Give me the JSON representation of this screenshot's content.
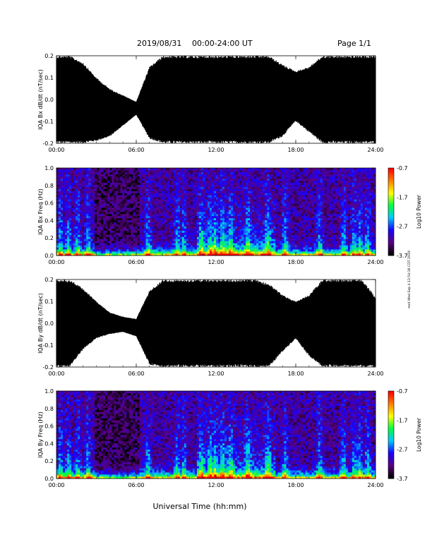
{
  "header": {
    "date_label": "2019/08/31",
    "time_range": "00:00-24:00 UT",
    "page_label": "Page 1/1"
  },
  "footer": {
    "xlabel": "Universal Time (hh:mm)",
    "side_note": "mr4 Wed Sep 4 13:54:36 CDT 2019"
  },
  "colors": {
    "trace": "#000000",
    "colormap": [
      "#000000",
      "#5a0080",
      "#1800ff",
      "#00c8ff",
      "#00ff40",
      "#ffff00",
      "#ff8000",
      "#ff0000"
    ]
  },
  "chart_data": [
    {
      "type": "line",
      "name": "bx-dbdt",
      "ylabel": "IQA Bx dB/dt (nT/sec)",
      "ylim": [
        -0.2,
        0.2
      ],
      "yticks": [
        "-0.2",
        "-0.1",
        "0.0",
        "0.1",
        "0.2"
      ],
      "xlim": [
        0,
        24
      ],
      "xticks": [
        "00:00",
        "06:00",
        "12:00",
        "18:00",
        "24:00"
      ],
      "x": [
        0,
        1,
        2,
        3,
        4,
        5,
        6,
        7,
        8,
        9,
        10,
        11,
        12,
        13,
        14,
        15,
        16,
        17,
        18,
        19,
        20,
        21,
        22,
        23,
        24
      ],
      "envelope_upper": [
        0.2,
        0.2,
        0.17,
        0.1,
        0.05,
        0.02,
        -0.01,
        0.15,
        0.2,
        0.2,
        0.2,
        0.2,
        0.2,
        0.2,
        0.2,
        0.2,
        0.2,
        0.16,
        0.13,
        0.15,
        0.2,
        0.2,
        0.2,
        0.2,
        0.2
      ],
      "envelope_lower": [
        -0.2,
        -0.2,
        -0.2,
        -0.19,
        -0.17,
        -0.12,
        -0.07,
        -0.18,
        -0.2,
        -0.2,
        -0.2,
        -0.2,
        -0.2,
        -0.2,
        -0.2,
        -0.2,
        -0.2,
        -0.17,
        -0.1,
        -0.15,
        -0.2,
        -0.2,
        -0.2,
        -0.2,
        -0.2
      ]
    },
    {
      "type": "heatmap",
      "name": "bx-spectrogram",
      "ylabel": "IQA Bx Freq (Hz)",
      "ylim": [
        0.0,
        1.0
      ],
      "yticks": [
        "0.0",
        "0.2",
        "0.4",
        "0.6",
        "0.8",
        "1.0"
      ],
      "xlim": [
        0,
        24
      ],
      "xticks": [
        "00:00",
        "06:00",
        "12:00",
        "18:00",
        "24:00"
      ],
      "colorbar": {
        "label": "Log10 Power",
        "range": [
          -3.7,
          -0.7
        ],
        "ticks": [
          "-0.7",
          "-1.7",
          "-2.7",
          "-3.7"
        ]
      },
      "bursts_hours": [
        0.3,
        0.9,
        1.6,
        2.4,
        6.9,
        9.1,
        9.6,
        10.9,
        11.6,
        11.9,
        12.5,
        13.1,
        14.4,
        15.9,
        17.2,
        19.8,
        21.6,
        22.4,
        22.8,
        23.4
      ]
    },
    {
      "type": "line",
      "name": "by-dbdt",
      "ylabel": "IQA By dB/dt (nT/sec)",
      "ylim": [
        -0.2,
        0.2
      ],
      "yticks": [
        "-0.2",
        "-0.1",
        "0.0",
        "0.1",
        "0.2"
      ],
      "xlim": [
        0,
        24
      ],
      "xticks": [
        "00:00",
        "06:00",
        "12:00",
        "18:00",
        "24:00"
      ],
      "x": [
        0,
        1,
        2,
        3,
        4,
        5,
        6,
        7,
        8,
        9,
        10,
        11,
        12,
        13,
        14,
        15,
        16,
        17,
        18,
        19,
        20,
        21,
        22,
        23,
        24
      ],
      "envelope_upper": [
        0.2,
        0.2,
        0.16,
        0.1,
        0.05,
        0.03,
        0.02,
        0.15,
        0.2,
        0.2,
        0.2,
        0.2,
        0.2,
        0.2,
        0.2,
        0.2,
        0.18,
        0.13,
        0.1,
        0.13,
        0.2,
        0.2,
        0.2,
        0.2,
        0.12
      ],
      "envelope_lower": [
        -0.2,
        -0.2,
        -0.12,
        -0.07,
        -0.05,
        -0.04,
        -0.06,
        -0.19,
        -0.2,
        -0.2,
        -0.2,
        -0.2,
        -0.2,
        -0.2,
        -0.2,
        -0.2,
        -0.2,
        -0.13,
        -0.07,
        -0.15,
        -0.2,
        -0.2,
        -0.2,
        -0.2,
        -0.2
      ]
    },
    {
      "type": "heatmap",
      "name": "by-spectrogram",
      "ylabel": "IQA By Freq (Hz)",
      "ylim": [
        0.0,
        1.0
      ],
      "yticks": [
        "0.0",
        "0.2",
        "0.4",
        "0.6",
        "0.8",
        "1.0"
      ],
      "xlim": [
        0,
        24
      ],
      "xticks": [
        "00:00",
        "06:00",
        "12:00",
        "18:00",
        "24:00"
      ],
      "colorbar": {
        "label": "Log10 Power",
        "range": [
          -3.7,
          -0.7
        ],
        "ticks": [
          "-0.7",
          "-1.7",
          "-2.7",
          "-3.7"
        ]
      },
      "bursts_hours": [
        0.3,
        0.9,
        1.6,
        2.4,
        6.9,
        9.1,
        9.6,
        10.9,
        11.6,
        11.9,
        12.5,
        13.1,
        14.4,
        15.9,
        17.2,
        19.8,
        21.6,
        22.4,
        22.8,
        23.4
      ]
    }
  ]
}
